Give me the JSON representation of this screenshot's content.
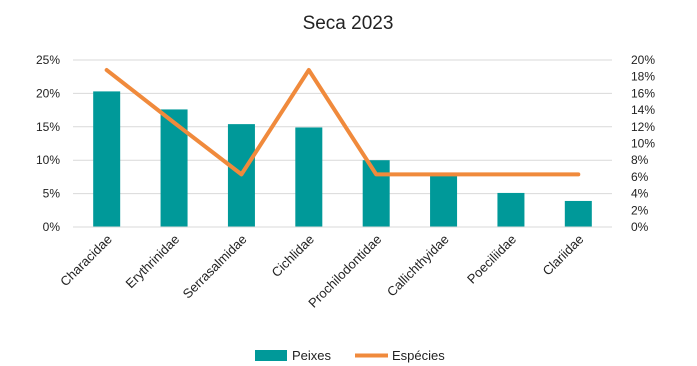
{
  "chart_data": {
    "type": "bar",
    "title": "Seca 2023",
    "categories": [
      "Characidae",
      "Erythrinidae",
      "Serrasalmidae",
      "Cichlidae",
      "Prochilodontidae",
      "Callichthyidae",
      "Poeciliidae",
      "Clariidae"
    ],
    "series": [
      {
        "name": "Peixes",
        "type": "bar",
        "axis": "left",
        "color": "#009999",
        "values": [
          20.3,
          17.6,
          15.4,
          14.9,
          10.0,
          7.9,
          5.1,
          3.9
        ]
      },
      {
        "name": "Espécies",
        "type": "line",
        "axis": "right",
        "color": "#F08A3C",
        "values": [
          18.8,
          12.5,
          6.3,
          18.8,
          6.3,
          6.3,
          6.3,
          6.3
        ]
      }
    ],
    "y_left": {
      "min": 0,
      "max": 25,
      "step": 5,
      "tick_labels": [
        "0%",
        "5%",
        "10%",
        "15%",
        "20%",
        "25%"
      ]
    },
    "y_right": {
      "min": 0,
      "max": 20,
      "step": 2,
      "tick_labels": [
        "0%",
        "2%",
        "4%",
        "6%",
        "8%",
        "10%",
        "12%",
        "14%",
        "16%",
        "18%",
        "20%"
      ]
    },
    "grid": true,
    "legend_position": "bottom"
  }
}
